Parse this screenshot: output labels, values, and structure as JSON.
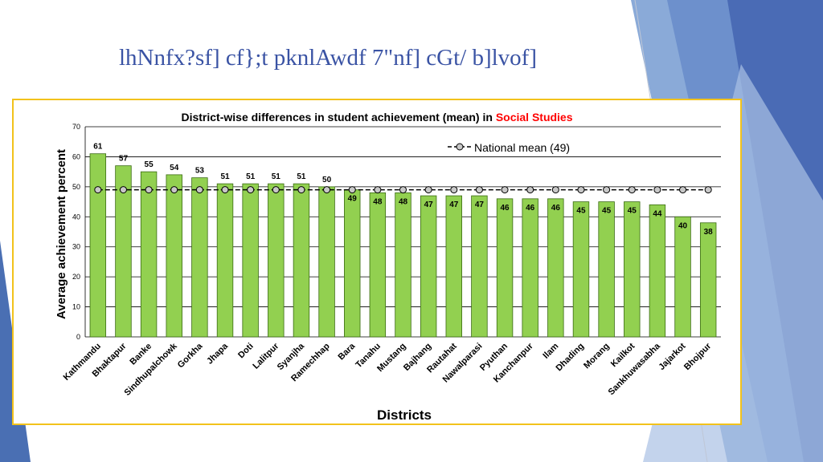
{
  "slide": {
    "title": "lhNnfx?sf] cf};t pknlAwdf 7\"nf] cGt/ b]lvof]"
  },
  "colors": {
    "bar": "#92d050",
    "bar_border": "#3a6b12",
    "accent": "#ff0000",
    "title": "#3a53a4",
    "frame": "#f2c21b"
  },
  "chart_data": {
    "type": "bar",
    "title_prefix": "District-wise differences in student achievement (mean) in ",
    "title_highlight": "Social Studies",
    "xlabel": "Districts",
    "ylabel": "Average achievement percent",
    "ylim": [
      0,
      70
    ],
    "yticks": [
      0,
      10,
      20,
      30,
      40,
      50,
      60,
      70
    ],
    "grid": true,
    "legend": "top-right",
    "categories": [
      "Kathmandu",
      "Bhaktapur",
      "Banke",
      "Sindhupalchowk",
      "Gorkha",
      "Jhapa",
      "Doti",
      "Lalitpur",
      "Syanjha",
      "Ramechhap",
      "Bara",
      "Tanahu",
      "Mustang",
      "Bajhang",
      "Rautahat",
      "Nawalparasi",
      "Pyuthan",
      "Kanchanpur",
      "Ilam",
      "Dhading",
      "Morang",
      "Kailkot",
      "Sankhuwasabha",
      "Jajarkot",
      "Bhojpur"
    ],
    "values": [
      61,
      57,
      55,
      54,
      53,
      51,
      51,
      51,
      51,
      50,
      49,
      48,
      48,
      47,
      47,
      47,
      46,
      46,
      46,
      45,
      45,
      45,
      44,
      40,
      38
    ],
    "reference_line": {
      "name": "National mean (49)",
      "value": 49
    }
  }
}
